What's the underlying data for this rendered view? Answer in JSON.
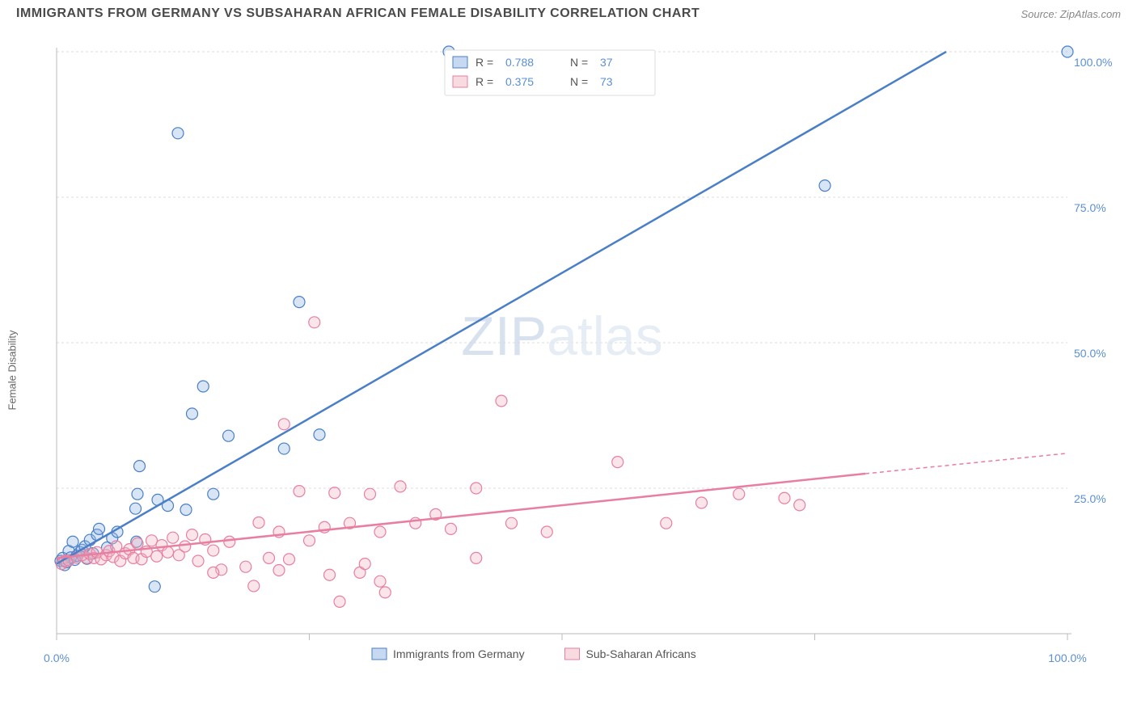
{
  "title": "IMMIGRANTS FROM GERMANY VS SUBSAHARAN AFRICAN FEMALE DISABILITY CORRELATION CHART",
  "source": "Source: ZipAtlas.com",
  "y_axis_label": "Female Disability",
  "watermark": {
    "part1": "ZIP",
    "part2": "atlas"
  },
  "chart": {
    "type": "scatter",
    "background_color": "#ffffff",
    "grid_color": "#dddddd",
    "axis_color": "#bbbbbb",
    "tick_label_color": "#5b8fd6",
    "xlim": [
      0,
      100
    ],
    "ylim": [
      0,
      100
    ],
    "x_ticks": [
      0,
      25,
      50,
      75,
      100
    ],
    "y_ticks": [
      25,
      50,
      75,
      100
    ],
    "x_tick_labels": [
      "0.0%",
      "",
      "",
      "",
      "100.0%"
    ],
    "y_tick_labels": [
      "25.0%",
      "50.0%",
      "75.0%",
      "100.0%"
    ],
    "marker_radius": 7,
    "series": [
      {
        "name": "Immigrants from Germany",
        "color_fill": "#8fb4e3",
        "color_stroke": "#4a7fc7",
        "R": "0.788",
        "N": "37",
        "trend": {
          "x1": 0,
          "y1": 12,
          "x2": 88,
          "y2": 100,
          "dash_extend": false
        },
        "points": [
          [
            0.4,
            12.5
          ],
          [
            0.6,
            13.0
          ],
          [
            0.8,
            11.8
          ],
          [
            1.0,
            12.3
          ],
          [
            1.2,
            14.2
          ],
          [
            1.4,
            13.1
          ],
          [
            1.6,
            15.8
          ],
          [
            1.8,
            12.7
          ],
          [
            2.0,
            13.4
          ],
          [
            2.3,
            14.0
          ],
          [
            2.5,
            14.4
          ],
          [
            2.8,
            15.0
          ],
          [
            3.0,
            12.9
          ],
          [
            3.3,
            16.1
          ],
          [
            3.6,
            13.8
          ],
          [
            4.0,
            17.0
          ],
          [
            4.2,
            18.0
          ],
          [
            5.0,
            14.8
          ],
          [
            5.5,
            16.4
          ],
          [
            6.0,
            17.5
          ],
          [
            7.8,
            21.5
          ],
          [
            7.9,
            15.8
          ],
          [
            8.0,
            24.0
          ],
          [
            8.2,
            28.8
          ],
          [
            9.7,
            8.1
          ],
          [
            10.0,
            23.0
          ],
          [
            11.0,
            22.0
          ],
          [
            12.8,
            21.3
          ],
          [
            13.4,
            37.8
          ],
          [
            14.5,
            42.5
          ],
          [
            15.5,
            24.0
          ],
          [
            17.0,
            34.0
          ],
          [
            22.5,
            31.8
          ],
          [
            24.0,
            57.0
          ],
          [
            26.0,
            34.2
          ],
          [
            38.8,
            100.0
          ],
          [
            12.0,
            86.0
          ],
          [
            76.0,
            77.0
          ],
          [
            100.0,
            100.0
          ]
        ]
      },
      {
        "name": "Sub-Saharan Africans",
        "color_fill": "#f2b5c4",
        "color_stroke": "#e87fa0",
        "R": "0.375",
        "N": "73",
        "trend": {
          "x1": 0,
          "y1": 13,
          "x2": 80,
          "y2": 27.5,
          "dash_extend": true,
          "dash_x2": 100,
          "dash_y2": 31
        },
        "points": [
          [
            0.5,
            12.0
          ],
          [
            0.8,
            12.5
          ],
          [
            1.2,
            12.6
          ],
          [
            3.0,
            13.0
          ],
          [
            2.0,
            13.1
          ],
          [
            2.5,
            13.5
          ],
          [
            3.3,
            13.7
          ],
          [
            3.7,
            13.0
          ],
          [
            4.0,
            14.0
          ],
          [
            4.4,
            12.8
          ],
          [
            4.9,
            13.5
          ],
          [
            5.2,
            14.2
          ],
          [
            5.6,
            13.2
          ],
          [
            5.9,
            15.0
          ],
          [
            6.3,
            12.5
          ],
          [
            6.8,
            13.8
          ],
          [
            7.2,
            14.5
          ],
          [
            7.6,
            13.0
          ],
          [
            8.0,
            15.5
          ],
          [
            8.4,
            12.8
          ],
          [
            8.9,
            14.1
          ],
          [
            9.4,
            16.0
          ],
          [
            9.9,
            13.3
          ],
          [
            10.4,
            15.2
          ],
          [
            11.0,
            14.0
          ],
          [
            11.5,
            16.5
          ],
          [
            12.1,
            13.5
          ],
          [
            12.7,
            15.0
          ],
          [
            13.4,
            17.0
          ],
          [
            14.0,
            12.5
          ],
          [
            14.7,
            16.2
          ],
          [
            15.5,
            14.3
          ],
          [
            16.3,
            11.0
          ],
          [
            17.1,
            15.8
          ],
          [
            15.5,
            10.5
          ],
          [
            18.7,
            11.5
          ],
          [
            19.5,
            8.2
          ],
          [
            20.0,
            19.1
          ],
          [
            21.0,
            13.0
          ],
          [
            22.0,
            17.5
          ],
          [
            22.0,
            10.9
          ],
          [
            23.0,
            12.8
          ],
          [
            22.5,
            36.0
          ],
          [
            24.0,
            24.5
          ],
          [
            25.0,
            16.0
          ],
          [
            26.5,
            18.3
          ],
          [
            27.0,
            10.1
          ],
          [
            27.5,
            24.2
          ],
          [
            28.0,
            5.5
          ],
          [
            29.0,
            19.0
          ],
          [
            30.0,
            10.5
          ],
          [
            30.5,
            12.0
          ],
          [
            31.0,
            24.0
          ],
          [
            32.0,
            17.5
          ],
          [
            32.0,
            9.0
          ],
          [
            32.5,
            7.1
          ],
          [
            34.0,
            25.3
          ],
          [
            35.5,
            19.0
          ],
          [
            37.5,
            20.5
          ],
          [
            39.0,
            18.0
          ],
          [
            44.0,
            40.0
          ],
          [
            41.5,
            25.0
          ],
          [
            41.5,
            13.0
          ],
          [
            45.0,
            19.0
          ],
          [
            48.5,
            17.5
          ],
          [
            55.5,
            29.5
          ],
          [
            60.3,
            19.0
          ],
          [
            63.8,
            22.5
          ],
          [
            67.5,
            24.0
          ],
          [
            72.0,
            23.3
          ],
          [
            73.5,
            22.1
          ],
          [
            25.5,
            53.5
          ]
        ]
      }
    ]
  },
  "legend_top": {
    "labels": [
      "R =",
      "N ="
    ]
  },
  "legend_bottom": {
    "items": [
      "Immigrants from Germany",
      "Sub-Saharan Africans"
    ]
  }
}
